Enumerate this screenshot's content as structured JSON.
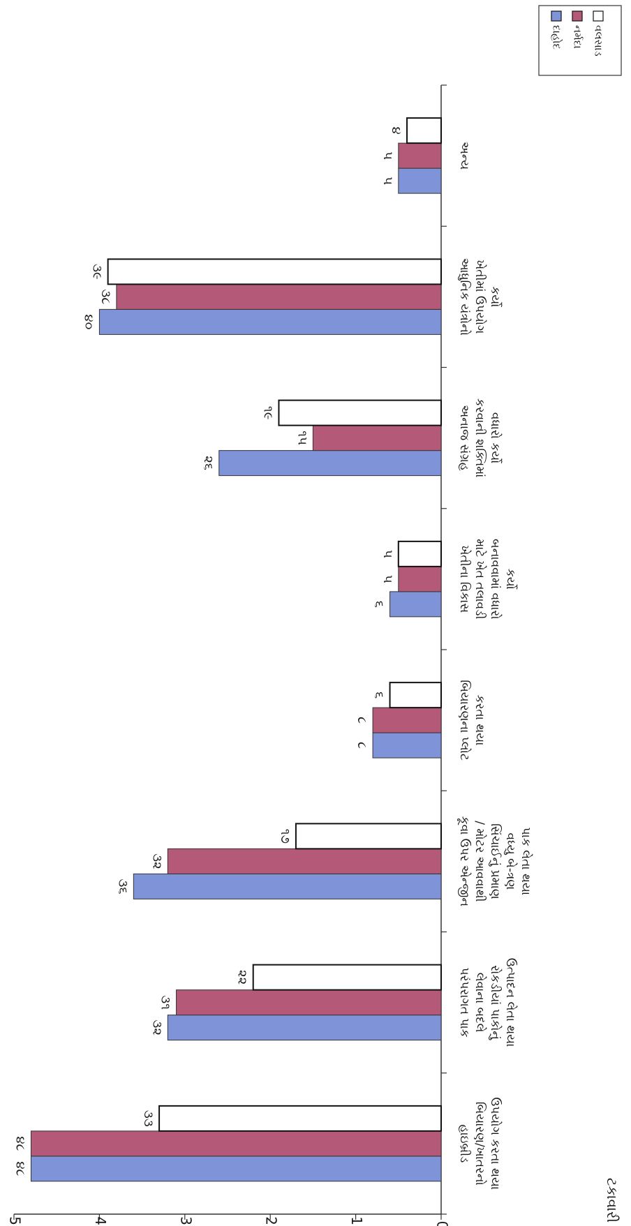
{
  "chart_data": {
    "type": "bar",
    "orientation": "horizontal-rotated",
    "ylabel": "ટકાવારી",
    "ylim": [
      0,
      50
    ],
    "yticks": [
      "0",
      "10",
      "20",
      "30",
      "40",
      "50"
    ],
    "grid": false,
    "legend_position": "top-right",
    "categories": [
      "હાઇબ્રીડ બિયારણ/ખાતરનો ઉપયોગ કરતા થયા",
      "પરંપરાગત પાક લેવાના બદલે રોકડીયાં પાકોનું ઉત્પાદન લેતા થયા",
      "કૂવા ઉપર એન્જીન / મોટર આવવાથી સિંચાઈનું પ્રમાણ વધ્યુ બે-ત્રણ પાક લેતા થયા",
      "બિયારણના પ્લોટ કરતા થયા",
      "ખેતીના વિકાસ માટે ખેત તલાવડી બનાવવામાં વધારો કર્યો",
      "અનાજ સંગ્રહ કરવાની શક્તિમાં વધારો કર્યો",
      "આધુનિક યંત્રોનો ખેતીમાં ઉપયોગ કર્યો",
      "અન્ય"
    ],
    "series": [
      {
        "name": "દાહોદ",
        "color": "#7f93d9",
        "values": [
          48,
          32,
          36,
          8,
          6,
          26,
          40,
          5
        ],
        "labels": [
          "૪૮",
          "૩૨",
          "૩૬",
          "૮",
          "૬",
          "૨૬",
          "૪૦",
          "૫"
        ]
      },
      {
        "name": "નર્મદા",
        "color": "#b45a78",
        "values": [
          48,
          31,
          32,
          8,
          5,
          15,
          38,
          5
        ],
        "labels": [
          "૪૮",
          "૩૧",
          "૩૨",
          "૮",
          "૫",
          "૧૫",
          "૩૮",
          "૫"
        ]
      },
      {
        "name": "વલસાડ",
        "color": "#ffffff",
        "values": [
          33,
          22,
          17,
          6,
          5,
          19,
          39,
          4
        ],
        "labels": [
          "૩૩",
          "૨૨",
          "૧૭",
          "૬",
          "૫",
          "૧૯",
          "૩૯",
          "૪"
        ]
      }
    ]
  }
}
